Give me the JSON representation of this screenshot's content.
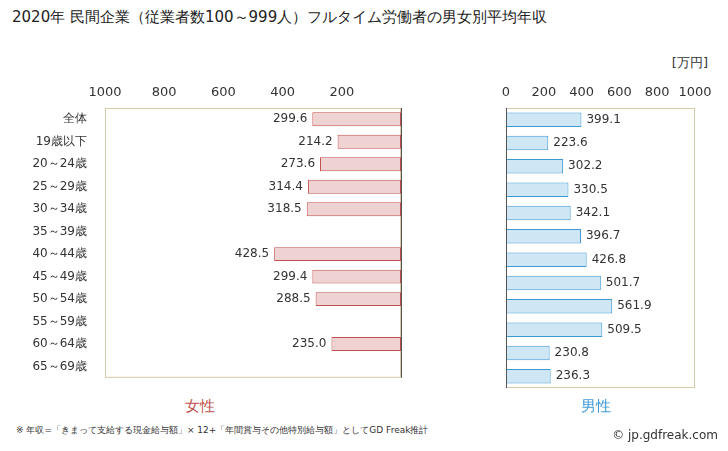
{
  "chart_data": {
    "type": "bar",
    "orientation": "horizontal",
    "title": "2020年 民間企業（従業者数100～999人）フルタイム労働者の男女別平均年収",
    "xlabel": "[万円]",
    "categories": [
      "全体",
      "19歳以下",
      "20～24歳",
      "25～29歳",
      "30～34歳",
      "35～39歳",
      "40～44歳",
      "45～49歳",
      "50～54歳",
      "55～59歳",
      "60～64歳",
      "65～69歳"
    ],
    "series": [
      {
        "name": "女性",
        "color": "#c0504d",
        "values": [
          299.6,
          214.2,
          273.6,
          314.4,
          318.5,
          null,
          428.5,
          299.4,
          288.5,
          null,
          235.0,
          null
        ],
        "value_labels": [
          "299.6",
          "214.2",
          "273.6",
          "314.4",
          "318.5",
          null,
          "428.5",
          "299.4",
          "288.5",
          null,
          "235.0",
          null
        ]
      },
      {
        "name": "男性",
        "color": "#3d9ad6",
        "values": [
          399.1,
          223.6,
          302.2,
          330.5,
          342.1,
          396.7,
          426.8,
          501.7,
          561.9,
          509.5,
          230.8,
          236.3
        ]
      }
    ],
    "xlim": [
      0,
      1000
    ],
    "xticks": [
      0,
      200,
      400,
      600,
      800,
      1000
    ],
    "data_labels": true,
    "grid": false,
    "note": "※ 年収=「きまって支給する現金給与額」× 12+「年間賞与その他特別給与額」としてGD Freak推計",
    "source": "© jp.gdfreak.com"
  }
}
